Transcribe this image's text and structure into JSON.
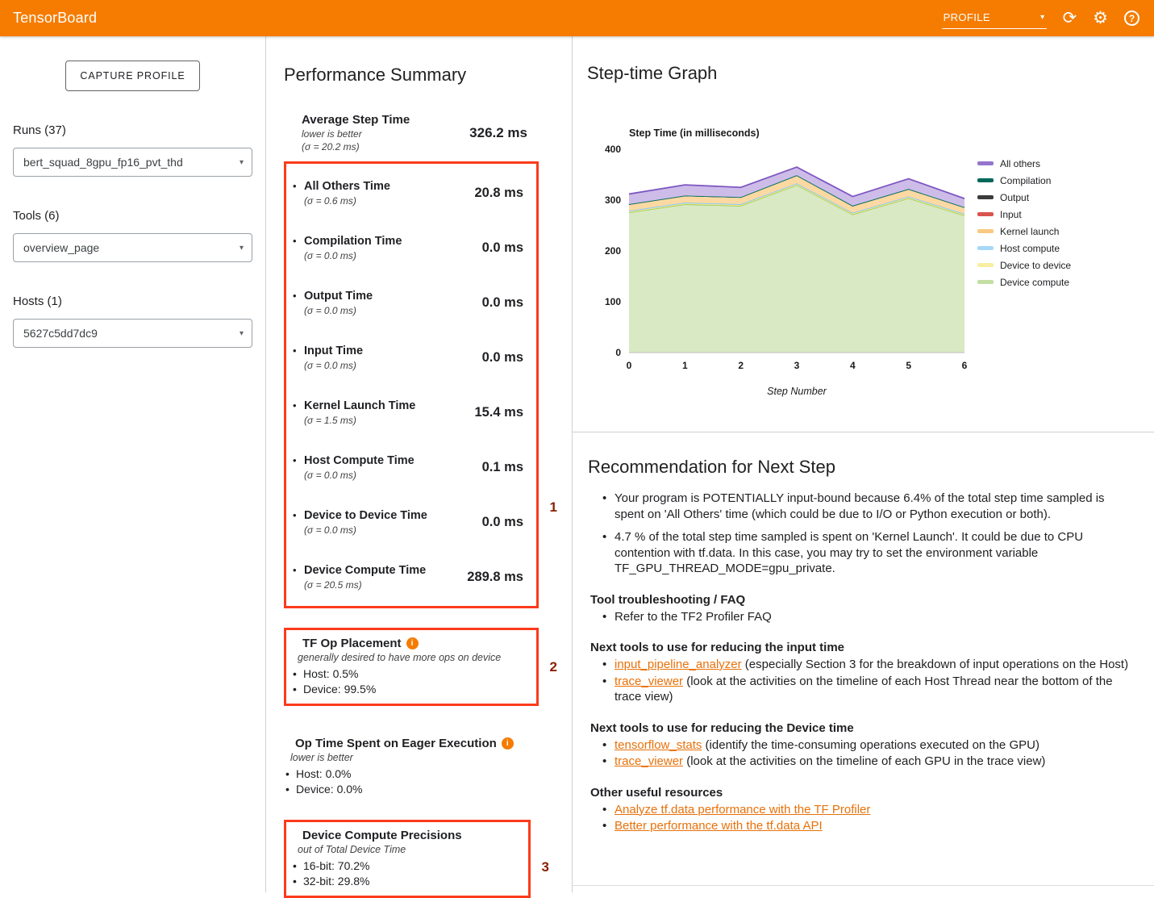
{
  "topbar": {
    "title": "TensorBoard",
    "dashboard": "PROFILE"
  },
  "sidebar": {
    "capture_button": "CAPTURE PROFILE",
    "runs_label": "Runs (37)",
    "runs_value": "bert_squad_8gpu_fp16_pvt_thd",
    "tools_label": "Tools (6)",
    "tools_value": "overview_page",
    "hosts_label": "Hosts (1)",
    "hosts_value": "5627c5dd7dc9"
  },
  "annotations": {
    "box1": "1",
    "box2": "2",
    "box3": "3"
  },
  "performance_summary": {
    "title": "Performance Summary",
    "average": {
      "label": "Average Step Time",
      "note": "lower is better",
      "sigma": "(σ = 20.2 ms)",
      "value": "326.2 ms"
    },
    "metrics": [
      {
        "label": "All Others Time",
        "sigma": "(σ = 0.6 ms)",
        "value": "20.8 ms"
      },
      {
        "label": "Compilation Time",
        "sigma": "(σ = 0.0 ms)",
        "value": "0.0 ms"
      },
      {
        "label": "Output Time",
        "sigma": "(σ = 0.0 ms)",
        "value": "0.0 ms"
      },
      {
        "label": "Input Time",
        "sigma": "(σ = 0.0 ms)",
        "value": "0.0 ms"
      },
      {
        "label": "Kernel Launch Time",
        "sigma": "(σ = 1.5 ms)",
        "value": "15.4 ms"
      },
      {
        "label": "Host Compute Time",
        "sigma": "(σ = 0.0 ms)",
        "value": "0.1 ms"
      },
      {
        "label": "Device to Device Time",
        "sigma": "(σ = 0.0 ms)",
        "value": "0.0 ms"
      },
      {
        "label": "Device Compute Time",
        "sigma": "(σ = 20.5 ms)",
        "value": "289.8 ms"
      }
    ],
    "tf_op_placement": {
      "title": "TF Op Placement",
      "note": "generally desired to have more ops on device",
      "items": [
        "Host: 0.5%",
        "Device: 99.5%"
      ]
    },
    "eager": {
      "title": "Op Time Spent on Eager Execution",
      "note": "lower is better",
      "items": [
        "Host: 0.0%",
        "Device: 0.0%"
      ]
    },
    "precisions": {
      "title": "Device Compute Precisions",
      "note": "out of Total Device Time",
      "items": [
        "16-bit: 70.2%",
        "32-bit: 29.8%"
      ]
    }
  },
  "step_time_graph": {
    "title": "Step-time Graph"
  },
  "chart_data": {
    "type": "area",
    "title": "Step Time (in milliseconds)",
    "xlabel": "Step Number",
    "x": [
      0,
      1,
      2,
      3,
      4,
      5,
      6
    ],
    "ylim": [
      0,
      400
    ],
    "yticks": [
      0,
      100,
      200,
      300,
      400
    ],
    "legend_position": "right",
    "grid": false,
    "stacking": "series listed top-to-bottom as in legend; bottom of stack is last entry",
    "series": [
      {
        "name": "All others",
        "line": "#7e57c2",
        "fill": "#cdbce8",
        "swatch": "#9575cd",
        "values": [
          20,
          21,
          19,
          16,
          18,
          20,
          17
        ]
      },
      {
        "name": "Compilation",
        "line": "#00796b",
        "fill": "#80cbc4",
        "swatch": "#00695c",
        "values": [
          0,
          0,
          0,
          0,
          0,
          0,
          0
        ]
      },
      {
        "name": "Output",
        "line": "#37474f",
        "fill": "#b0bec5",
        "swatch": "#3c3c3c",
        "values": [
          0,
          0,
          0,
          0,
          0,
          0,
          0
        ]
      },
      {
        "name": "Input",
        "line": "#e53935",
        "fill": "#ef9a9a",
        "swatch": "#d9544d",
        "values": [
          0,
          0,
          0,
          0,
          0,
          0,
          0
        ]
      },
      {
        "name": "Kernel launch",
        "line": "#fb8c00",
        "fill": "#fcd9a2",
        "swatch": "#f9c980",
        "values": [
          13,
          14,
          14,
          16,
          14,
          15,
          13
        ]
      },
      {
        "name": "Host compute",
        "line": "#7ec8f7",
        "fill": "#cce9fb",
        "swatch": "#a6d9f7",
        "values": [
          2,
          2,
          2,
          2,
          2,
          2,
          2
        ]
      },
      {
        "name": "Device to device",
        "line": "#fbe870",
        "fill": "#fdf6c3",
        "swatch": "#f7ef9e",
        "values": [
          1,
          1,
          1,
          1,
          1,
          1,
          1
        ]
      },
      {
        "name": "Device compute",
        "line": "#8bc34a",
        "fill": "#d9e9c3",
        "swatch": "#c3dea2",
        "values": [
          276,
          292,
          289,
          330,
          272,
          304,
          270
        ]
      }
    ]
  },
  "recommendation": {
    "title": "Recommendation for Next Step",
    "bullets": [
      "Your program is POTENTIALLY input-bound because 6.4% of the total step time sampled is spent on 'All Others' time (which could be due to I/O or Python execution or both).",
      "4.7 % of the total step time sampled is spent on 'Kernel Launch'. It could be due to CPU contention with tf.data. In this case, you may try to set the environment variable TF_GPU_THREAD_MODE=gpu_private."
    ],
    "sections": [
      {
        "heading": "Tool troubleshooting / FAQ",
        "items": [
          {
            "pre": "Refer to the TF2 Profiler FAQ",
            "link": "",
            "post": ""
          }
        ]
      },
      {
        "heading": "Next tools to use for reducing the input time",
        "items": [
          {
            "pre": "",
            "link": "input_pipeline_analyzer",
            "post": " (especially Section 3 for the breakdown of input operations on the Host)"
          },
          {
            "pre": "",
            "link": "trace_viewer",
            "post": " (look at the activities on the timeline of each Host Thread near the bottom of the trace view)"
          }
        ]
      },
      {
        "heading": "Next tools to use for reducing the Device time",
        "items": [
          {
            "pre": "",
            "link": "tensorflow_stats",
            "post": " (identify the time-consuming operations executed on the GPU)"
          },
          {
            "pre": "",
            "link": "trace_viewer",
            "post": " (look at the activities on the timeline of each GPU in the trace view)"
          }
        ]
      },
      {
        "heading": "Other useful resources",
        "items": [
          {
            "pre": "",
            "link": "Analyze tf.data performance with the TF Profiler",
            "post": ""
          },
          {
            "pre": "",
            "link": "Better performance with the tf.data API",
            "post": ""
          }
        ]
      }
    ]
  }
}
